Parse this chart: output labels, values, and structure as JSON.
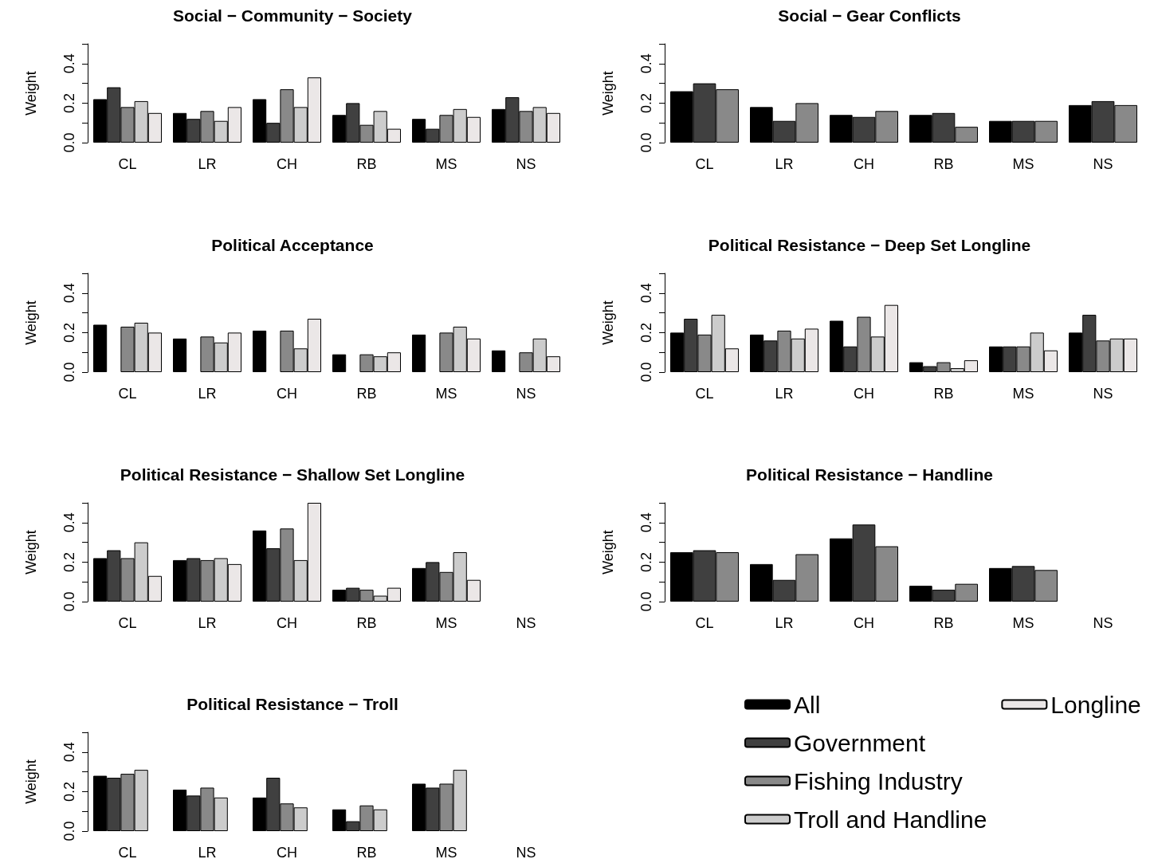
{
  "chart_data": [
    {
      "type": "bar",
      "title": "Social − Community − Society",
      "ylabel": "Weight",
      "categories": [
        "CL",
        "LR",
        "CH",
        "RB",
        "MS",
        "NS"
      ],
      "ylim": [
        0,
        0.5
      ],
      "yticks": [
        {
          "value": 0,
          "label": "0.0"
        },
        {
          "value": 0.1,
          "label": null
        },
        {
          "value": 0.2,
          "label": "0.2"
        },
        {
          "value": 0.3,
          "label": null
        },
        {
          "value": 0.4,
          "label": "0.4"
        },
        {
          "value": 0.5,
          "label": null
        }
      ],
      "grid": false,
      "legend": false,
      "series": [
        {
          "color": "#000000",
          "values": [
            0.22,
            0.15,
            0.22,
            0.14,
            0.12,
            0.17
          ]
        },
        {
          "color": "#404040",
          "values": [
            0.28,
            0.12,
            0.1,
            0.2,
            0.07,
            0.23
          ]
        },
        {
          "color": "#898989",
          "values": [
            0.18,
            0.16,
            0.27,
            0.09,
            0.14,
            0.16
          ]
        },
        {
          "color": "#cccccc",
          "values": [
            0.21,
            0.11,
            0.18,
            0.16,
            0.17,
            0.18
          ]
        },
        {
          "color": "#ebe7e7",
          "values": [
            0.15,
            0.18,
            0.33,
            0.07,
            0.13,
            0.15
          ]
        }
      ]
    },
    {
      "type": "bar",
      "title": "Social − Gear Conflicts",
      "ylabel": "Weight",
      "categories": [
        "CL",
        "LR",
        "CH",
        "RB",
        "MS",
        "NS"
      ],
      "ylim": [
        0,
        0.5
      ],
      "yticks": [
        {
          "value": 0,
          "label": "0.0"
        },
        {
          "value": 0.1,
          "label": null
        },
        {
          "value": 0.2,
          "label": "0.2"
        },
        {
          "value": 0.3,
          "label": null
        },
        {
          "value": 0.4,
          "label": "0.4"
        },
        {
          "value": 0.5,
          "label": null
        }
      ],
      "grid": false,
      "legend": false,
      "series": [
        {
          "color": "#000000",
          "values": [
            0.26,
            0.18,
            0.14,
            0.14,
            0.11,
            0.19
          ]
        },
        {
          "color": "#404040",
          "values": [
            0.3,
            0.11,
            0.13,
            0.15,
            0.11,
            0.21
          ]
        },
        {
          "color": "#898989",
          "values": [
            0.27,
            0.2,
            0.16,
            0.08,
            0.11,
            0.19
          ]
        }
      ]
    },
    {
      "type": "bar",
      "title": "Political Acceptance",
      "ylabel": "Weight",
      "categories": [
        "CL",
        "LR",
        "CH",
        "RB",
        "MS",
        "NS"
      ],
      "ylim": [
        0,
        0.5
      ],
      "yticks": [
        {
          "value": 0,
          "label": "0.0"
        },
        {
          "value": 0.1,
          "label": null
        },
        {
          "value": 0.2,
          "label": "0.2"
        },
        {
          "value": 0.3,
          "label": null
        },
        {
          "value": 0.4,
          "label": "0.4"
        },
        {
          "value": 0.5,
          "label": null
        }
      ],
      "grid": false,
      "legend": false,
      "series": [
        {
          "color": "#000000",
          "values": [
            0.24,
            0.17,
            0.21,
            0.09,
            0.19,
            0.11
          ]
        },
        {
          "color": "#404040",
          "values": [
            null,
            null,
            null,
            null,
            null,
            null
          ]
        },
        {
          "color": "#898989",
          "values": [
            0.23,
            0.18,
            0.21,
            0.09,
            0.2,
            0.1
          ]
        },
        {
          "color": "#cccccc",
          "values": [
            0.25,
            0.15,
            0.12,
            0.08,
            0.23,
            0.17
          ]
        },
        {
          "color": "#ebe7e7",
          "values": [
            0.2,
            0.2,
            0.27,
            0.1,
            0.17,
            0.08
          ]
        }
      ]
    },
    {
      "type": "bar",
      "title": "Political Resistance − Deep Set Longline",
      "ylabel": "Weight",
      "categories": [
        "CL",
        "LR",
        "CH",
        "RB",
        "MS",
        "NS"
      ],
      "ylim": [
        0,
        0.5
      ],
      "yticks": [
        {
          "value": 0,
          "label": "0.0"
        },
        {
          "value": 0.1,
          "label": null
        },
        {
          "value": 0.2,
          "label": "0.2"
        },
        {
          "value": 0.3,
          "label": null
        },
        {
          "value": 0.4,
          "label": "0.4"
        },
        {
          "value": 0.5,
          "label": null
        }
      ],
      "grid": false,
      "legend": false,
      "series": [
        {
          "color": "#000000",
          "values": [
            0.2,
            0.19,
            0.26,
            0.05,
            0.13,
            0.2
          ]
        },
        {
          "color": "#404040",
          "values": [
            0.27,
            0.16,
            0.13,
            0.03,
            0.13,
            0.29
          ]
        },
        {
          "color": "#898989",
          "values": [
            0.19,
            0.21,
            0.28,
            0.05,
            0.13,
            0.16
          ]
        },
        {
          "color": "#cccccc",
          "values": [
            0.29,
            0.17,
            0.18,
            0.02,
            0.2,
            0.17
          ]
        },
        {
          "color": "#ebe7e7",
          "values": [
            0.12,
            0.22,
            0.34,
            0.06,
            0.11,
            0.17
          ]
        }
      ]
    },
    {
      "type": "bar",
      "title": "Political Resistance − Shallow Set Longline",
      "ylabel": "Weight",
      "categories": [
        "CL",
        "LR",
        "CH",
        "RB",
        "MS",
        "NS"
      ],
      "ylim": [
        0,
        0.5
      ],
      "yticks": [
        {
          "value": 0,
          "label": "0.0"
        },
        {
          "value": 0.1,
          "label": null
        },
        {
          "value": 0.2,
          "label": "0.2"
        },
        {
          "value": 0.3,
          "label": null
        },
        {
          "value": 0.4,
          "label": "0.4"
        },
        {
          "value": 0.5,
          "label": null
        }
      ],
      "grid": false,
      "legend": false,
      "series": [
        {
          "color": "#000000",
          "values": [
            0.22,
            0.21,
            0.36,
            0.06,
            0.17,
            null
          ]
        },
        {
          "color": "#404040",
          "values": [
            0.26,
            0.22,
            0.27,
            0.07,
            0.2,
            null
          ]
        },
        {
          "color": "#898989",
          "values": [
            0.22,
            0.21,
            0.37,
            0.06,
            0.15,
            null
          ]
        },
        {
          "color": "#cccccc",
          "values": [
            0.3,
            0.22,
            0.21,
            0.03,
            0.25,
            null
          ]
        },
        {
          "color": "#ebe7e7",
          "values": [
            0.13,
            0.19,
            0.5,
            0.07,
            0.11,
            null
          ]
        }
      ]
    },
    {
      "type": "bar",
      "title": "Political Resistance − Handline",
      "ylabel": "Weight",
      "categories": [
        "CL",
        "LR",
        "CH",
        "RB",
        "MS",
        "NS"
      ],
      "ylim": [
        0,
        0.5
      ],
      "yticks": [
        {
          "value": 0,
          "label": "0.0"
        },
        {
          "value": 0.1,
          "label": null
        },
        {
          "value": 0.2,
          "label": "0.2"
        },
        {
          "value": 0.3,
          "label": null
        },
        {
          "value": 0.4,
          "label": "0.4"
        },
        {
          "value": 0.5,
          "label": null
        }
      ],
      "grid": false,
      "legend": false,
      "series": [
        {
          "color": "#000000",
          "values": [
            0.25,
            0.19,
            0.32,
            0.08,
            0.17,
            null
          ]
        },
        {
          "color": "#404040",
          "values": [
            0.26,
            0.11,
            0.39,
            0.06,
            0.18,
            null
          ]
        },
        {
          "color": "#898989",
          "values": [
            0.25,
            0.24,
            0.28,
            0.09,
            0.16,
            null
          ]
        }
      ]
    },
    {
      "type": "bar",
      "title": "Political Resistance − Troll",
      "ylabel": "Weight",
      "categories": [
        "CL",
        "LR",
        "CH",
        "RB",
        "MS",
        "NS"
      ],
      "ylim": [
        0,
        0.5
      ],
      "yticks": [
        {
          "value": 0,
          "label": "0.0"
        },
        {
          "value": 0.1,
          "label": null
        },
        {
          "value": 0.2,
          "label": "0.2"
        },
        {
          "value": 0.3,
          "label": null
        },
        {
          "value": 0.4,
          "label": "0.4"
        },
        {
          "value": 0.5,
          "label": null
        }
      ],
      "grid": false,
      "legend": "right",
      "series": [
        {
          "name": "All",
          "color": "#000000",
          "values": [
            0.28,
            0.21,
            0.17,
            0.11,
            0.24,
            null
          ]
        },
        {
          "name": "Government",
          "color": "#404040",
          "values": [
            0.27,
            0.18,
            0.27,
            0.05,
            0.22,
            null
          ]
        },
        {
          "name": "Fishing Industry",
          "color": "#898989",
          "values": [
            0.29,
            0.22,
            0.14,
            0.13,
            0.24,
            null
          ]
        },
        {
          "name": "Troll and Handline",
          "color": "#cccccc",
          "values": [
            0.31,
            0.17,
            0.12,
            0.11,
            0.31,
            null
          ]
        },
        {
          "name": "Longline",
          "color": "#ebe7e7",
          "values": [
            null,
            null,
            null,
            null,
            null,
            null
          ]
        }
      ]
    }
  ]
}
